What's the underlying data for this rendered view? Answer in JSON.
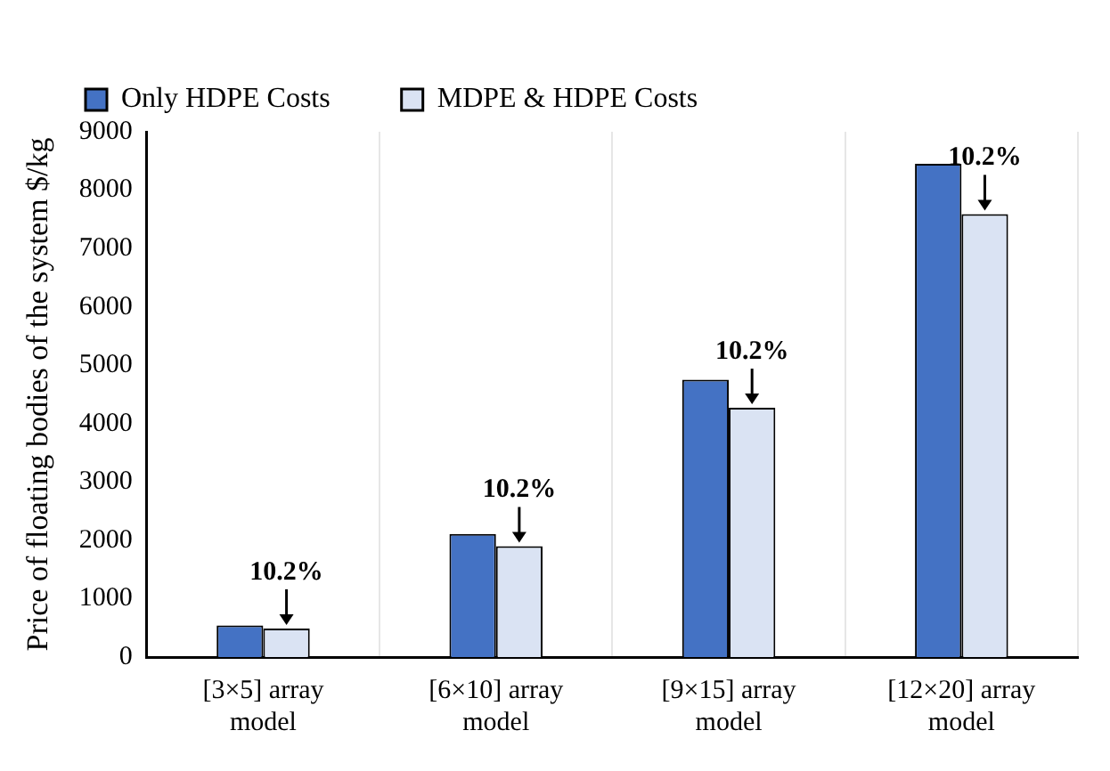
{
  "chart_data": {
    "type": "bar",
    "ylabel": "Price of floating bodies of the system $/kg",
    "categories": [
      "[3×5] array model",
      "[6×10] array model",
      "[9×15] array model",
      "[12×20] array model"
    ],
    "series": [
      {
        "name": "Only HDPE Costs",
        "color": "#4472c4",
        "values": [
          540,
          2110,
          4750,
          8450
        ]
      },
      {
        "name": "MDPE & HDPE Costs",
        "color": "#dae3f3",
        "values": [
          490,
          1900,
          4270,
          7590
        ]
      }
    ],
    "ylim": [
      0,
      9000
    ],
    "yticks": [
      0,
      1000,
      2000,
      3000,
      4000,
      5000,
      6000,
      7000,
      8000,
      9000
    ],
    "grid": "x",
    "legend": "top",
    "annotations": [
      {
        "text": "10.2%",
        "x": "[3×5] array model",
        "y": 490
      },
      {
        "text": "10.2%",
        "x": "[6×10] array model",
        "y": 1900
      },
      {
        "text": "10.2%",
        "x": "[9×15] array model",
        "y": 4270
      },
      {
        "text": "10.2%",
        "x": "[12×20] array model",
        "y": 7590
      }
    ]
  }
}
